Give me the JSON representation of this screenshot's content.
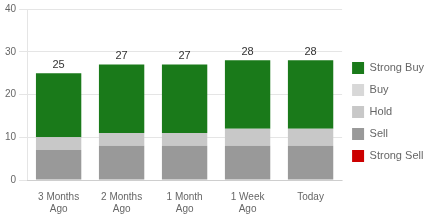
{
  "chart_data": {
    "type": "bar",
    "stacked": true,
    "categories": [
      "3 Months\nAgo",
      "2 Months\nAgo",
      "1 Month\nAgo",
      "1 Week\nAgo",
      "Today"
    ],
    "series": [
      {
        "name": "Strong Sell",
        "color": "#cc0000",
        "values": [
          0,
          0,
          0,
          0,
          0
        ]
      },
      {
        "name": "Sell",
        "color": "#999999",
        "values": [
          7,
          8,
          8,
          8,
          8
        ]
      },
      {
        "name": "Hold",
        "color": "#c8c8c8",
        "values": [
          3,
          3,
          3,
          4,
          4
        ]
      },
      {
        "name": "Buy",
        "color": "#d8d8d8",
        "values": [
          0,
          0,
          0,
          0,
          0
        ]
      },
      {
        "name": "Strong Buy",
        "color": "#1a7a1a",
        "values": [
          15,
          16,
          16,
          16,
          16
        ]
      }
    ],
    "totals": [
      25,
      27,
      27,
      28,
      28
    ],
    "ylim": [
      0,
      40
    ],
    "yticks": [
      0,
      10,
      20,
      30,
      40
    ],
    "grid": true,
    "legend": "right"
  }
}
